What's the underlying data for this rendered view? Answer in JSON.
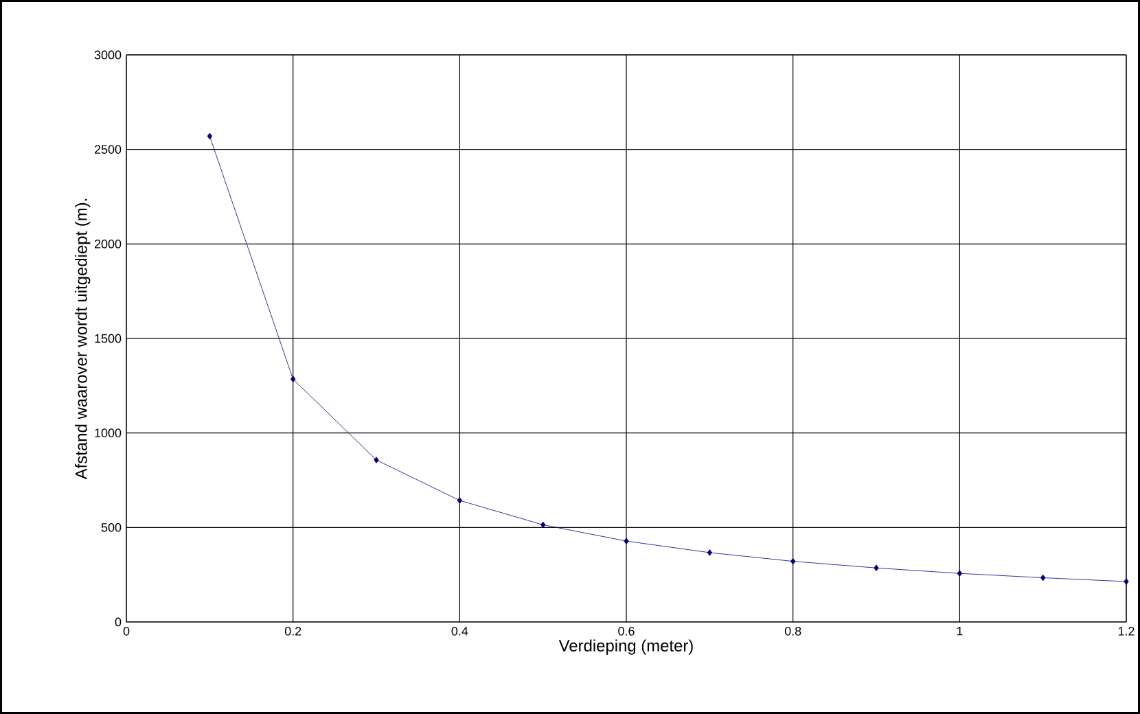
{
  "chart_data": {
    "type": "line",
    "xlabel": "Verdieping (meter)",
    "ylabel": "Afstand waarover wordt uitgediept (m).",
    "x": [
      0.1,
      0.2,
      0.3,
      0.4,
      0.5,
      0.6,
      0.7,
      0.8,
      0.9,
      1.0,
      1.1,
      1.2
    ],
    "series": [
      {
        "color": "#000080",
        "values": [
          2570,
          1285,
          857,
          643,
          514,
          428,
          367,
          321,
          286,
          257,
          234,
          214
        ]
      }
    ],
    "xlim": [
      0,
      1.2
    ],
    "ylim": [
      0,
      3000
    ],
    "xticks": [
      0,
      0.2,
      0.4,
      0.6,
      0.8,
      1,
      1.2
    ],
    "yticks": [
      0,
      500,
      1000,
      1500,
      2000,
      2500,
      3000
    ],
    "grid": true,
    "marker": "diamond",
    "line_style": "solid"
  }
}
